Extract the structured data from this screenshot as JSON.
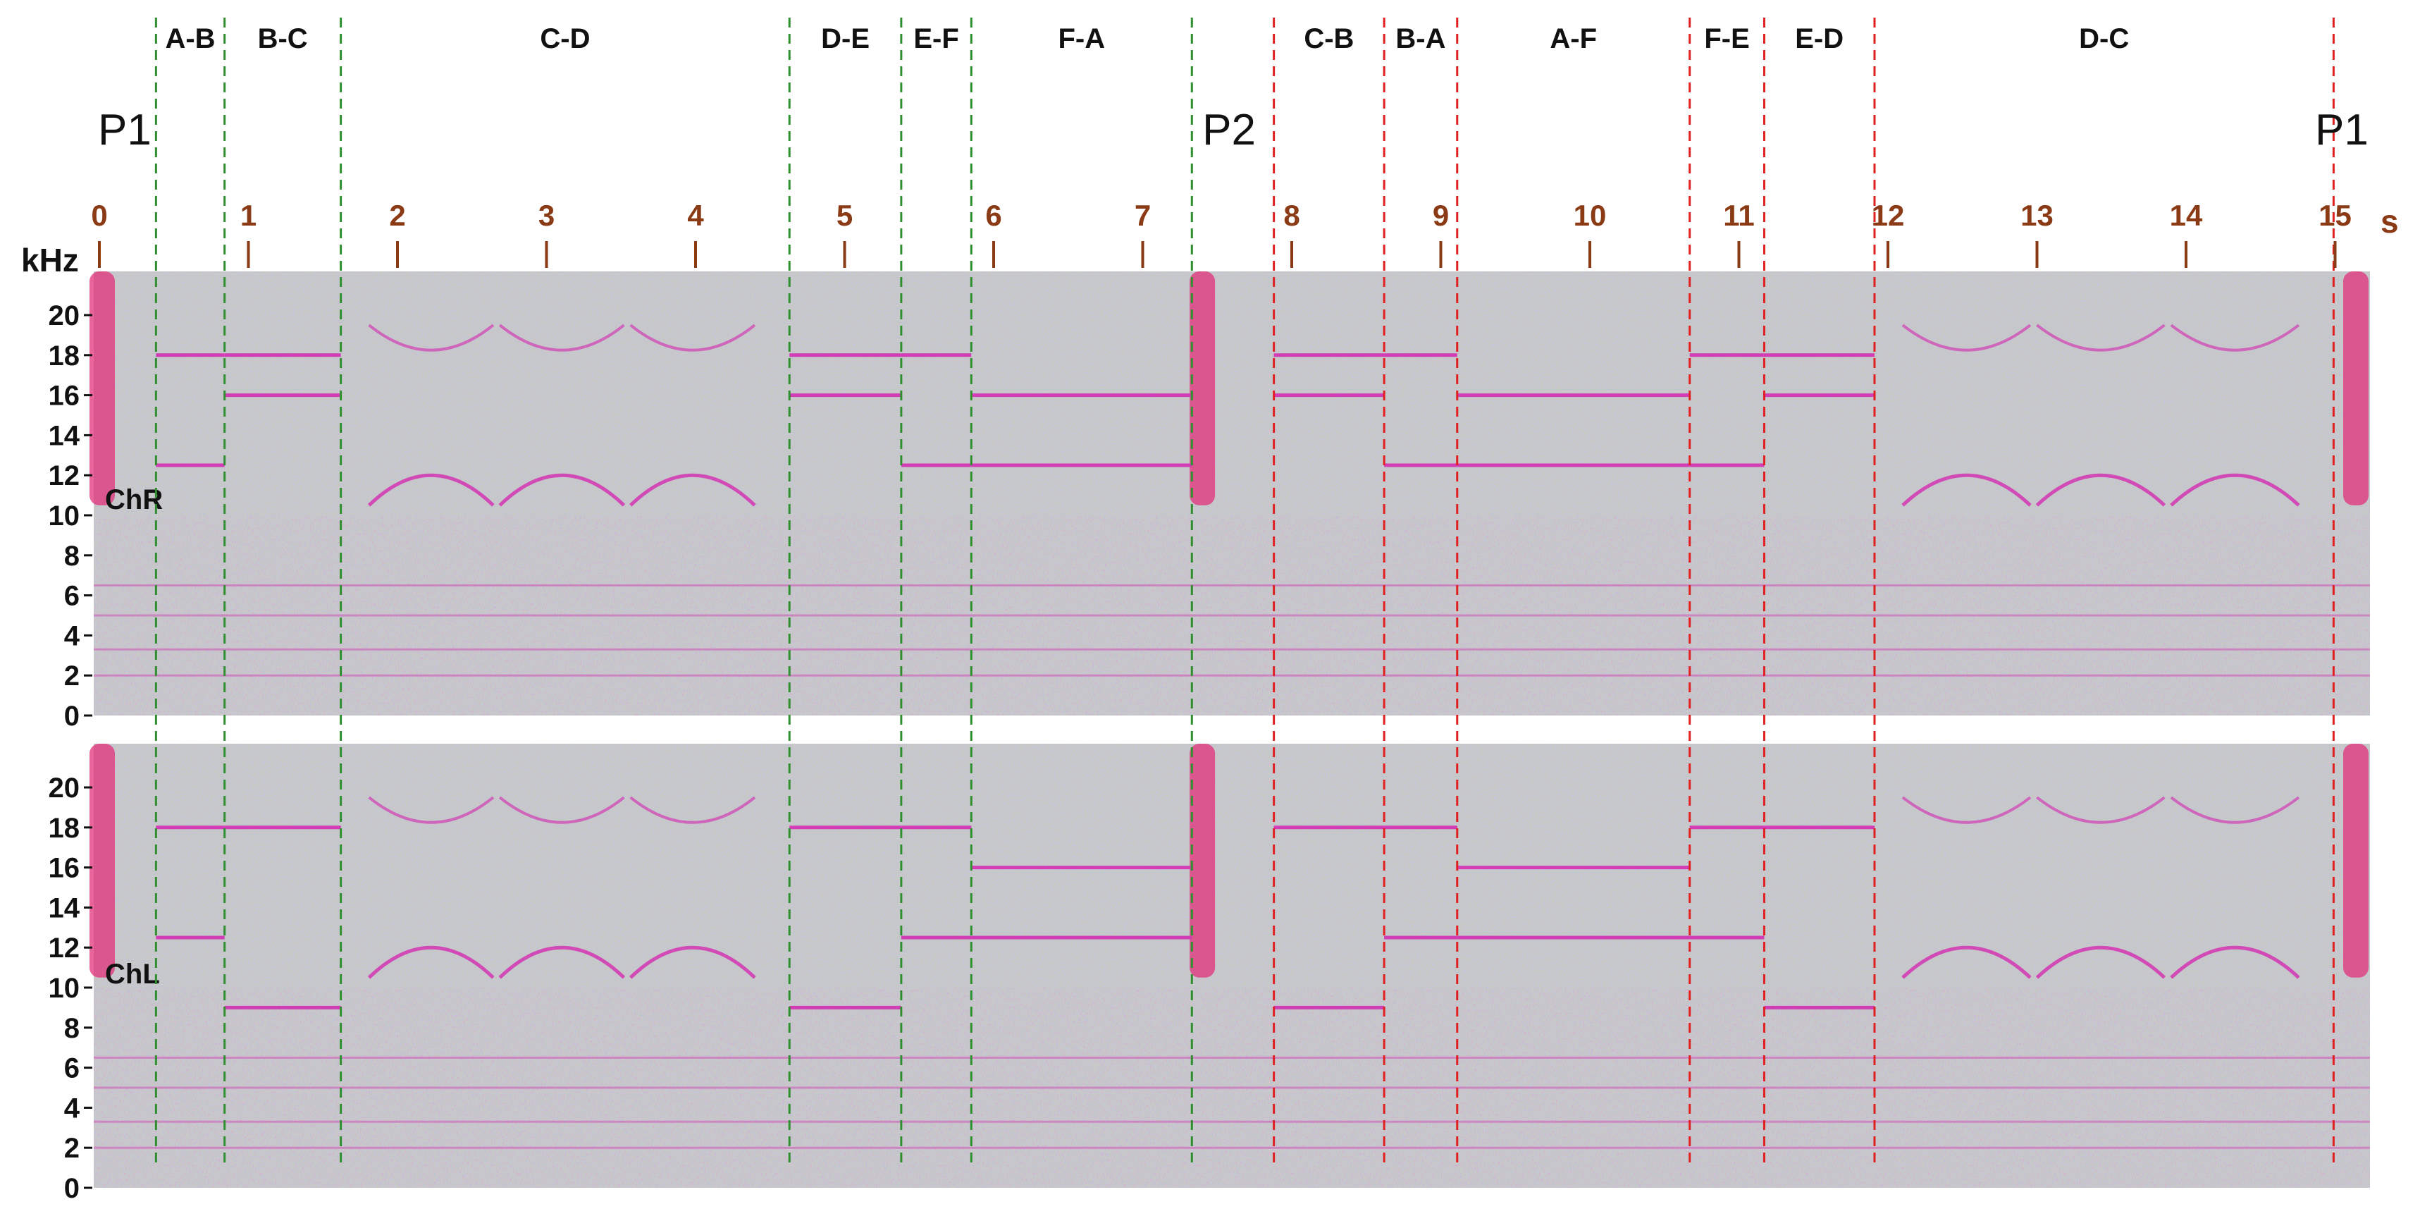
{
  "chart_data": {
    "type": "heatmap",
    "title": "",
    "xlabel": "s",
    "ylabel": "kHz",
    "xlim": [
      0,
      15.4
    ],
    "ylim": [
      0,
      22
    ],
    "x_ticks": [
      0,
      1,
      2,
      3,
      4,
      5,
      6,
      7,
      8,
      9,
      10,
      11,
      12,
      13,
      14,
      15
    ],
    "x_tick_labels": [
      "0",
      "1",
      "2",
      "3",
      "4",
      "5",
      "6",
      "7",
      "8",
      "9",
      "10",
      "11",
      "12",
      "13",
      "14",
      "15"
    ],
    "y_ticks": [
      0,
      2,
      4,
      6,
      8,
      10,
      12,
      14,
      16,
      18,
      20
    ],
    "y_tick_labels": [
      "0",
      "2",
      "4",
      "6",
      "8",
      "10",
      "12",
      "14",
      "16",
      "18",
      "20"
    ],
    "x_unit_label": "s",
    "y_unit_label": "kHz",
    "position_markers": [
      {
        "label": "P1",
        "t": 0.0
      },
      {
        "label": "P2",
        "t": 7.4
      },
      {
        "label": "P1",
        "t": 15.2
      }
    ],
    "boundaries": [
      {
        "t": 0.38,
        "color": "#2f8f2f"
      },
      {
        "t": 0.84,
        "color": "#2f8f2f"
      },
      {
        "t": 1.62,
        "color": "#2f8f2f"
      },
      {
        "t": 4.63,
        "color": "#2f8f2f"
      },
      {
        "t": 5.38,
        "color": "#2f8f2f"
      },
      {
        "t": 5.85,
        "color": "#2f8f2f"
      },
      {
        "t": 7.33,
        "color": "#2f8f2f"
      },
      {
        "t": 7.88,
        "color": "#e02020"
      },
      {
        "t": 8.62,
        "color": "#e02020"
      },
      {
        "t": 9.11,
        "color": "#e02020"
      },
      {
        "t": 10.67,
        "color": "#e02020"
      },
      {
        "t": 11.17,
        "color": "#e02020"
      },
      {
        "t": 11.91,
        "color": "#e02020"
      },
      {
        "t": 14.99,
        "color": "#e02020"
      }
    ],
    "segments": [
      {
        "label": "A-B",
        "t0": 0.38,
        "t1": 0.84,
        "tones_R": [
          12.5,
          18
        ],
        "tones_L": [
          12.5,
          18
        ]
      },
      {
        "label": "B-C",
        "t0": 0.84,
        "t1": 1.62,
        "tones_R": [
          16,
          18
        ],
        "tones_L": [
          9,
          18
        ]
      },
      {
        "label": "C-D",
        "t0": 1.62,
        "t1": 4.63,
        "tones_R": [],
        "tones_L": []
      },
      {
        "label": "D-E",
        "t0": 4.63,
        "t1": 5.38,
        "tones_R": [
          16,
          18
        ],
        "tones_L": [
          9,
          18
        ]
      },
      {
        "label": "E-F",
        "t0": 5.38,
        "t1": 5.85,
        "tones_R": [
          12.5,
          18
        ],
        "tones_L": [
          12.5,
          18
        ]
      },
      {
        "label": "F-A",
        "t0": 5.85,
        "t1": 7.33,
        "tones_R": [
          12.5,
          16
        ],
        "tones_L": [
          12.5,
          16
        ]
      },
      {
        "label": "C-B",
        "t0": 7.88,
        "t1": 8.62,
        "tones_R": [
          16,
          18
        ],
        "tones_L": [
          9,
          18
        ]
      },
      {
        "label": "B-A",
        "t0": 8.62,
        "t1": 9.11,
        "tones_R": [
          12.5,
          18
        ],
        "tones_L": [
          12.5,
          18
        ]
      },
      {
        "label": "A-F",
        "t0": 9.11,
        "t1": 10.67,
        "tones_R": [
          12.5,
          16
        ],
        "tones_L": [
          12.5,
          16
        ]
      },
      {
        "label": "F-E",
        "t0": 10.67,
        "t1": 11.17,
        "tones_R": [
          12.5,
          18
        ],
        "tones_L": [
          12.5,
          18
        ]
      },
      {
        "label": "E-D",
        "t0": 11.17,
        "t1": 11.91,
        "tones_R": [
          16,
          18
        ],
        "tones_L": [
          9,
          18
        ]
      },
      {
        "label": "D-C",
        "t0": 11.91,
        "t1": 14.99,
        "tones_R": [],
        "tones_L": []
      }
    ],
    "channels": [
      {
        "name": "ChR",
        "broadband_bursts": [
          0.0,
          7.4,
          15.2
        ]
      },
      {
        "name": "ChL",
        "broadband_bursts": [
          0.0,
          7.4,
          15.2
        ]
      }
    ],
    "palette": {
      "background": "#c8c8c8",
      "low_intensity": "#9aa8f0",
      "high_intensity": "#d23cb4",
      "burst": "#e0307a"
    }
  }
}
